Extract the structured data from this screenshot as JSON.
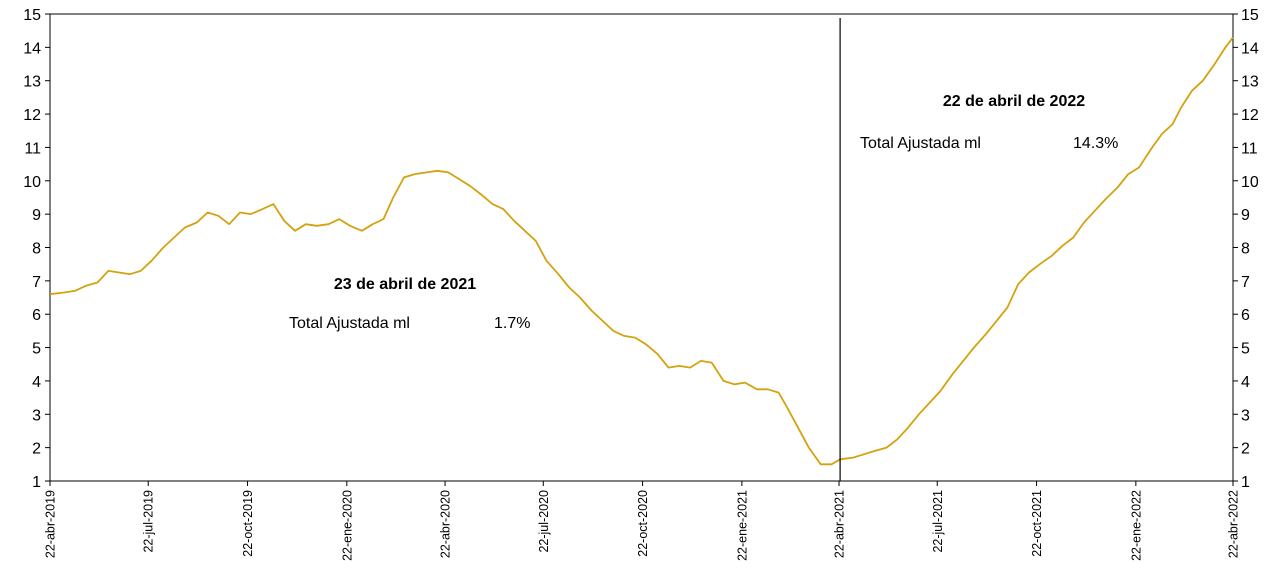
{
  "chart_data": {
    "type": "line",
    "ylim": [
      1,
      15
    ],
    "y_ticks": [
      "1",
      "2",
      "3",
      "4",
      "5",
      "6",
      "7",
      "8",
      "9",
      "10",
      "11",
      "12",
      "13",
      "14",
      "15"
    ],
    "x_tick_labels": [
      "22-abr-2019",
      "22-jul-2019",
      "22-oct-2019",
      "22-ene-2020",
      "22-abr-2020",
      "22-jul-2020",
      "22-oct-2020",
      "22-ene-2021",
      "22-abr-2021",
      "22-jul-2021",
      "22-oct-2021",
      "22-ene-2022",
      "22-abr-2022"
    ],
    "x_tick_dates": [
      "2019-04-22",
      "2019-07-22",
      "2019-10-22",
      "2020-01-22",
      "2020-04-22",
      "2020-07-22",
      "2020-10-22",
      "2021-01-22",
      "2021-04-22",
      "2021-07-22",
      "2021-10-22",
      "2022-01-22",
      "2022-04-22"
    ],
    "grid": false,
    "line_color": "#D4A20E",
    "series": [
      {
        "x": [
          "2019-04-22",
          "2019-05-05",
          "2019-05-15",
          "2019-05-25",
          "2019-06-05",
          "2019-06-15",
          "2019-06-25",
          "2019-07-05",
          "2019-07-15",
          "2019-07-25",
          "2019-08-05",
          "2019-08-15",
          "2019-08-25",
          "2019-09-05",
          "2019-09-15",
          "2019-09-25",
          "2019-10-05",
          "2019-10-15",
          "2019-10-25",
          "2019-11-05",
          "2019-11-15",
          "2019-11-25",
          "2019-12-05",
          "2019-12-15",
          "2019-12-25",
          "2020-01-05",
          "2020-01-15",
          "2020-01-25",
          "2020-02-05",
          "2020-02-15",
          "2020-02-25",
          "2020-03-05",
          "2020-03-15",
          "2020-03-25",
          "2020-04-05",
          "2020-04-15",
          "2020-04-25",
          "2020-05-05",
          "2020-05-15",
          "2020-05-25",
          "2020-06-05",
          "2020-06-15",
          "2020-06-25",
          "2020-07-05",
          "2020-07-15",
          "2020-07-25",
          "2020-08-05",
          "2020-08-15",
          "2020-08-25",
          "2020-09-05",
          "2020-09-15",
          "2020-09-25",
          "2020-10-05",
          "2020-10-15",
          "2020-10-25",
          "2020-11-05",
          "2020-11-15",
          "2020-11-25",
          "2020-12-05",
          "2020-12-15",
          "2020-12-25",
          "2021-01-05",
          "2021-01-15",
          "2021-01-25",
          "2021-02-05",
          "2021-02-15",
          "2021-02-25",
          "2021-03-05",
          "2021-03-15",
          "2021-03-25",
          "2021-04-05",
          "2021-04-15",
          "2021-04-23",
          "2021-05-05",
          "2021-05-15",
          "2021-05-25",
          "2021-06-05",
          "2021-06-15",
          "2021-06-25",
          "2021-07-05",
          "2021-07-15",
          "2021-07-25",
          "2021-08-05",
          "2021-08-15",
          "2021-08-25",
          "2021-09-05",
          "2021-09-15",
          "2021-09-25",
          "2021-10-05",
          "2021-10-15",
          "2021-10-25",
          "2021-11-05",
          "2021-11-15",
          "2021-11-25",
          "2021-12-05",
          "2021-12-15",
          "2021-12-25",
          "2022-01-05",
          "2022-01-15",
          "2022-01-25",
          "2022-02-05",
          "2022-02-15",
          "2022-02-25",
          "2022-03-05",
          "2022-03-15",
          "2022-03-25",
          "2022-04-05",
          "2022-04-15",
          "2022-04-22"
        ],
        "values": [
          6.6,
          6.65,
          6.7,
          6.85,
          6.95,
          7.3,
          7.25,
          7.2,
          7.3,
          7.6,
          8.0,
          8.3,
          8.6,
          8.75,
          9.05,
          8.95,
          8.7,
          9.05,
          9.0,
          9.15,
          9.3,
          8.8,
          8.5,
          8.7,
          8.65,
          8.7,
          8.85,
          8.65,
          8.5,
          8.7,
          8.85,
          9.5,
          10.1,
          10.2,
          10.25,
          10.3,
          10.25,
          10.05,
          9.85,
          9.6,
          9.3,
          9.15,
          8.8,
          8.5,
          8.2,
          7.6,
          7.2,
          6.8,
          6.5,
          6.1,
          5.8,
          5.5,
          5.35,
          5.3,
          5.1,
          4.8,
          4.4,
          4.45,
          4.4,
          4.6,
          4.55,
          4.0,
          3.9,
          3.95,
          3.75,
          3.75,
          3.65,
          3.2,
          2.6,
          2.0,
          1.5,
          1.5,
          1.65,
          1.7,
          1.8,
          1.9,
          2.0,
          2.25,
          2.6,
          3.0,
          3.35,
          3.7,
          4.2,
          4.6,
          5.0,
          5.4,
          5.8,
          6.2,
          6.9,
          7.25,
          7.5,
          7.75,
          8.05,
          8.3,
          8.75,
          9.1,
          9.45,
          9.8,
          10.2,
          10.4,
          10.95,
          11.4,
          11.7,
          12.2,
          12.7,
          13.0,
          13.5,
          14.0,
          14.3
        ]
      }
    ],
    "vertical_line_x": "2021-04-23"
  },
  "annotations": {
    "left": {
      "title": "23 de abril de 2021",
      "label": "Total Ajustada ml",
      "value": "1.7%"
    },
    "right": {
      "title": "22 de abril de 2022",
      "label": "Total Ajustada ml",
      "value": "14.3%"
    }
  }
}
